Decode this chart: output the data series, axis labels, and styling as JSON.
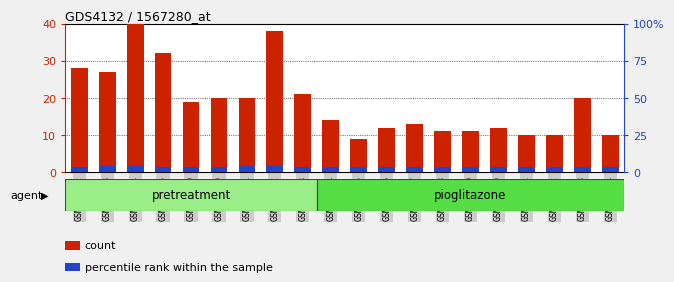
{
  "title": "GDS4132 / 1567280_at",
  "samples": [
    "GSM201542",
    "GSM201543",
    "GSM201544",
    "GSM201545",
    "GSM201829",
    "GSM201830",
    "GSM201831",
    "GSM201832",
    "GSM201833",
    "GSM201834",
    "GSM201835",
    "GSM201836",
    "GSM201837",
    "GSM201838",
    "GSM201839",
    "GSM201840",
    "GSM201841",
    "GSM201842",
    "GSM201843",
    "GSM201844"
  ],
  "count_values": [
    28,
    27,
    40,
    32,
    19,
    20,
    20,
    38,
    21,
    14,
    9,
    12,
    13,
    11,
    11,
    12,
    10,
    10,
    20,
    10
  ],
  "percentile_values": [
    1.5,
    1.8,
    1.8,
    1.5,
    1.5,
    1.5,
    1.8,
    1.8,
    1.5,
    1.5,
    1.5,
    1.5,
    1.5,
    1.5,
    1.5,
    1.5,
    1.5,
    1.5,
    1.5,
    1.5
  ],
  "count_color": "#cc2200",
  "percentile_color": "#2244cc",
  "ylim_left": [
    0,
    40
  ],
  "ylim_right": [
    0,
    100
  ],
  "yticks_left": [
    0,
    10,
    20,
    30,
    40
  ],
  "yticks_right": [
    0,
    25,
    50,
    75,
    100
  ],
  "ytick_labels_right": [
    "0",
    "25",
    "50",
    "75",
    "100%"
  ],
  "grid_values": [
    10,
    20,
    30
  ],
  "pretreatment_samples": 9,
  "pioglitazone_samples": 11,
  "pretreatment_label": "pretreatment",
  "pioglitazone_label": "pioglitazone",
  "agent_label": "agent",
  "legend_count": "count",
  "legend_percentile": "percentile rank within the sample",
  "bar_width": 0.6,
  "background_color": "#f0f0f0",
  "plot_bg_color": "#ffffff",
  "agent_box_color_pre": "#99ee88",
  "agent_box_color_pio": "#55dd44",
  "tick_bg_color": "#cccccc",
  "left_tick_color": "#cc2200",
  "right_tick_color": "#2244cc"
}
